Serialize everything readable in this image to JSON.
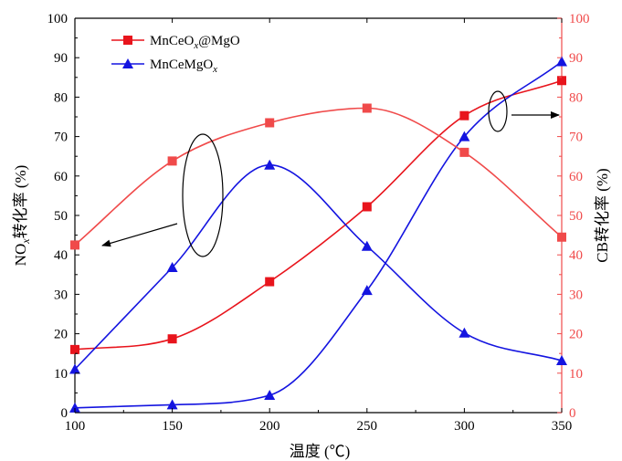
{
  "chart_data": {
    "type": "line",
    "x": [
      100,
      150,
      200,
      250,
      300,
      350
    ],
    "xlabel": "温度 (℃)",
    "xlim": [
      100,
      350
    ],
    "xticks": [
      100,
      150,
      200,
      250,
      300,
      350
    ],
    "ylabel_left": "NOx转化率 (%)",
    "ylabel_right": "CB转化率 (%)",
    "ylim": [
      0,
      100
    ],
    "yticks": [
      0,
      10,
      20,
      30,
      40,
      50,
      60,
      70,
      80,
      90,
      100
    ],
    "grid": false,
    "legend_position": "top-left",
    "colors": {
      "red": "#e8141c",
      "red_light": "#f04a4a",
      "blue": "#1414e0",
      "right_axis": "#f04a4a"
    },
    "series": [
      {
        "name": "MnCeOx@MgO",
        "axis": "left",
        "marker": "square",
        "color": "red",
        "y": [
          16,
          18.7,
          33.2,
          52.2,
          75.3,
          84.2
        ]
      },
      {
        "name": "MnCeMgOx",
        "axis": "left",
        "marker": "triangle",
        "color": "blue",
        "y": [
          1.2,
          2,
          4.4,
          31,
          70,
          89
        ]
      },
      {
        "axis": "right",
        "marker": "square",
        "color": "red_light",
        "y": [
          42.5,
          63.8,
          73.5,
          77.2,
          66,
          44.5
        ]
      },
      {
        "axis": "right",
        "marker": "triangle",
        "color": "blue",
        "y": [
          11,
          36.8,
          62.8,
          42.2,
          20.2,
          13.2
        ]
      }
    ]
  }
}
